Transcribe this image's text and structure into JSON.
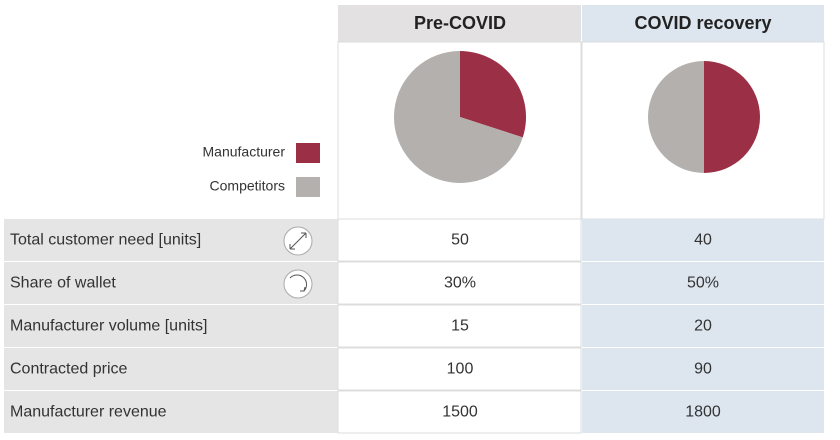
{
  "columns": [
    {
      "title": "Pre-COVID",
      "pie": [
        30,
        70
      ]
    },
    {
      "title": "COVID recovery",
      "pie": [
        50,
        50
      ]
    }
  ],
  "legend": [
    {
      "label": "Manufacturer",
      "color": "#9b2f45"
    },
    {
      "label": "Competitors",
      "color": "#b3b0ad"
    }
  ],
  "rows": [
    {
      "label": "Total customer need [units]",
      "values": [
        50,
        40
      ]
    },
    {
      "label": "Share of wallet",
      "values": [
        "30%",
        "50%"
      ]
    },
    {
      "label": "Manufacturer volume [units]",
      "values": [
        15,
        20
      ]
    },
    {
      "label": "Contracted price",
      "values": [
        100,
        90
      ]
    },
    {
      "label": "Manufacturer revenue",
      "values": [
        1500,
        1800
      ]
    }
  ]
}
